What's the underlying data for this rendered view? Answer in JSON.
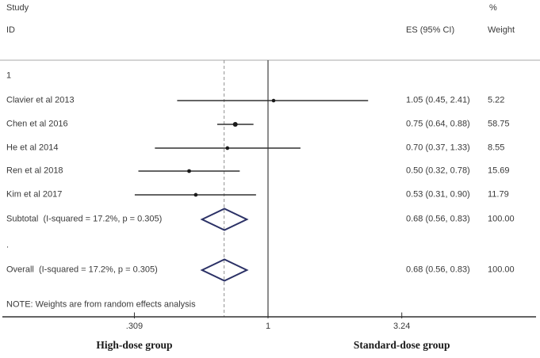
{
  "header": {
    "col_study": "Study",
    "col_id": "ID",
    "col_pct": "%",
    "col_es": "ES (95% CI)",
    "col_weight": "Weight"
  },
  "chart_data": {
    "type": "forest",
    "x_scale": "log",
    "null_line_value": 1,
    "overall_dashed_value": 0.68,
    "axis_ticks": [
      {
        "value": 0.309,
        "label": ".309"
      },
      {
        "value": 1,
        "label": "1"
      },
      {
        "value": 3.24,
        "label": "3.24"
      }
    ],
    "xlabel_left": "High-dose group",
    "xlabel_right": "Standard-dose group",
    "subgroup_label": "1",
    "studies": [
      {
        "id": "Clavier et al 2013",
        "es": 1.05,
        "lo": 0.45,
        "hi": 2.41,
        "es_text": "1.05 (0.45, 2.41)",
        "weight": 5.22,
        "weight_text": "5.22"
      },
      {
        "id": "Chen et al 2016",
        "es": 0.75,
        "lo": 0.64,
        "hi": 0.88,
        "es_text": "0.75 (0.64, 0.88)",
        "weight": 58.75,
        "weight_text": "58.75"
      },
      {
        "id": "He et al 2014",
        "es": 0.7,
        "lo": 0.37,
        "hi": 1.33,
        "es_text": "0.70 (0.37, 1.33)",
        "weight": 8.55,
        "weight_text": "8.55"
      },
      {
        "id": "Ren et al 2018",
        "es": 0.5,
        "lo": 0.32,
        "hi": 0.78,
        "es_text": "0.50 (0.32, 0.78)",
        "weight": 15.69,
        "weight_text": "15.69"
      },
      {
        "id": "Kim et al 2017",
        "es": 0.53,
        "lo": 0.31,
        "hi": 0.9,
        "es_text": "0.53 (0.31, 0.90)",
        "weight": 11.79,
        "weight_text": "11.79"
      }
    ],
    "subtotal": {
      "label": "Subtotal  (I-squared = 17.2%, p = 0.305)",
      "es": 0.68,
      "lo": 0.56,
      "hi": 0.83,
      "es_text": "0.68 (0.56, 0.83)",
      "weight_text": "100.00"
    },
    "separator_dot": ".",
    "overall": {
      "label": "Overall  (I-squared = 17.2%, p = 0.305)",
      "es": 0.68,
      "lo": 0.56,
      "hi": 0.83,
      "es_text": "0.68 (0.56, 0.83)",
      "weight_text": "100.00"
    },
    "note": "NOTE: Weights are from random effects analysis"
  },
  "colors": {
    "text": "#3a3a3a",
    "ci_line": "#303030",
    "marker": "#1a1a1a",
    "diamond_stroke": "#2b3166",
    "null_line": "#404040",
    "dashed_line": "#909090",
    "header_separator": "#a8a8a8",
    "axis_line": "#303030"
  }
}
